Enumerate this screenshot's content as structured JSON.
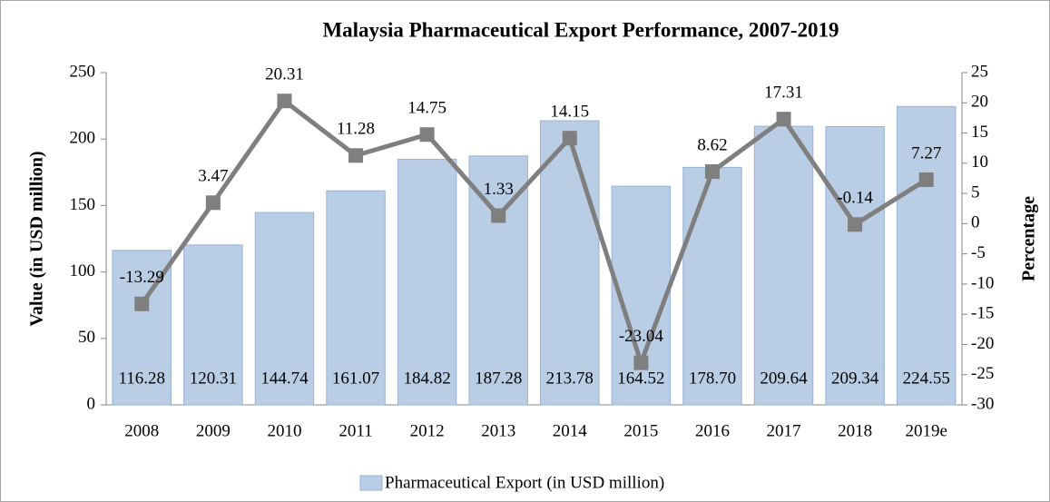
{
  "chart_data": {
    "type": "bar",
    "title": "Malaysia Pharmaceutical Export Performance, 2007-2019",
    "y_label": "Value (in USD million)",
    "y2_label": "Percentage",
    "categories": [
      "2008",
      "2009",
      "2010",
      "2011",
      "2012",
      "2013",
      "2014",
      "2015",
      "2016",
      "2017",
      "2018",
      "2019e"
    ],
    "series": [
      {
        "name": "Pharmaceutical Export (in USD million)",
        "type": "bar",
        "color": "#b9cde5",
        "values": [
          116.28,
          120.31,
          144.74,
          161.07,
          184.82,
          187.28,
          213.78,
          164.52,
          178.7,
          209.64,
          209.34,
          224.55
        ],
        "value_labels": [
          "116.28",
          "120.31",
          "144.74",
          "161.07",
          "184.82",
          "187.28",
          "213.78",
          "164.52",
          "178.70",
          "209.64",
          "209.34",
          "224.55"
        ]
      },
      {
        "type": "line",
        "color": "#7f7f7f",
        "axis": "y2",
        "values": [
          -13.29,
          3.47,
          20.31,
          11.28,
          14.75,
          1.33,
          14.15,
          -23.04,
          8.62,
          17.31,
          -0.14,
          7.27
        ]
      }
    ],
    "ylim": [
      0,
      250
    ],
    "yticks": [
      0,
      50,
      100,
      150,
      200,
      250
    ],
    "y2lim": [
      -30,
      25
    ],
    "y2ticks": [
      -30,
      -25,
      -20,
      -15,
      -10,
      -5,
      0,
      5,
      10,
      15,
      20,
      25
    ],
    "legend": "bottom"
  }
}
